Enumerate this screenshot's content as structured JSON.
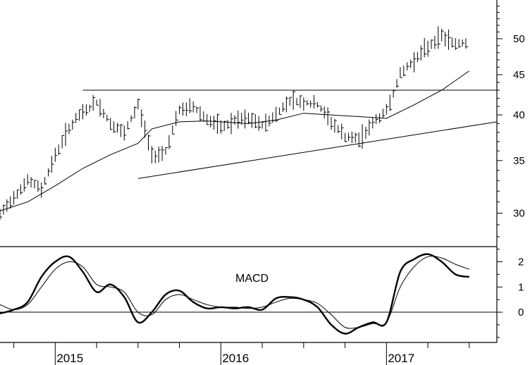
{
  "chart_data": [
    {
      "type": "bar",
      "subtype": "ohlc-weekly",
      "title": "",
      "yscale": "log",
      "ylim": [
        27.2,
        56
      ],
      "y_ticks": [
        30,
        35,
        40,
        45,
        50
      ],
      "x_labels": [
        "2015",
        "2016",
        "2017"
      ],
      "xlim": [
        "2014-09",
        "2017-09"
      ],
      "moving_average": {
        "x": [
          "2014-09",
          "2014-11",
          "2015-01",
          "2015-03",
          "2015-05",
          "2015-07",
          "2015-08",
          "2015-10",
          "2015-12",
          "2016-01",
          "2016-03",
          "2016-05",
          "2016-07",
          "2016-09",
          "2016-11",
          "2017-01",
          "2017-03",
          "2017-05",
          "2017-07"
        ],
        "y": [
          30.2,
          31.0,
          32.5,
          34.2,
          35.6,
          36.8,
          38.4,
          39.2,
          39.3,
          39.2,
          39.0,
          39.4,
          40.2,
          40.0,
          39.8,
          39.6,
          41.2,
          43.0,
          45.5
        ]
      },
      "price_weekly": {
        "x": [
          "2014-09",
          "2014-10",
          "2014-11",
          "2014-12",
          "2015-01",
          "2015-02",
          "2015-03",
          "2015-04",
          "2015-05",
          "2015-06",
          "2015-07",
          "2015-08",
          "2015-09",
          "2015-10",
          "2015-11",
          "2015-12",
          "2016-01",
          "2016-02",
          "2016-03",
          "2016-04",
          "2016-05",
          "2016-06",
          "2016-07",
          "2016-08",
          "2016-09",
          "2016-10",
          "2016-11",
          "2016-12",
          "2017-01",
          "2017-02",
          "2017-03",
          "2017-04",
          "2017-05",
          "2017-06",
          "2017-07"
        ],
        "y": [
          29.8,
          31.5,
          33.0,
          32.2,
          35.5,
          38.5,
          40.3,
          41.5,
          39.0,
          37.8,
          41.2,
          35.5,
          36.0,
          40.5,
          41.0,
          39.5,
          38.5,
          39.3,
          39.5,
          38.8,
          40.0,
          41.8,
          41.5,
          41.2,
          39.2,
          37.5,
          37.2,
          39.0,
          40.5,
          45.0,
          47.0,
          48.8,
          50.5,
          49.2,
          49.6
        ]
      },
      "trendlines": [
        {
          "from": [
            "2015-03",
            43.0
          ],
          "to": [
            "2017-09",
            43.0
          ]
        },
        {
          "from": [
            "2015-07",
            33.2
          ],
          "to": [
            "2017-09",
            39.2
          ]
        }
      ]
    },
    {
      "type": "line",
      "title": "",
      "annotation": "MACD",
      "ylim": [
        -1.2,
        2.6
      ],
      "y_ticks": [
        0,
        1,
        2
      ],
      "zero_line": true,
      "series": [
        {
          "x": [
            "2014-09",
            "2014-10",
            "2014-11",
            "2014-12",
            "2015-01",
            "2015-02",
            "2015-03",
            "2015-04",
            "2015-05",
            "2015-06",
            "2015-07",
            "2015-08",
            "2015-09",
            "2015-10",
            "2015-11",
            "2015-12",
            "2016-01",
            "2016-02",
            "2016-03",
            "2016-04",
            "2016-05",
            "2016-06",
            "2016-07",
            "2016-08",
            "2016-09",
            "2016-10",
            "2016-11",
            "2016-12",
            "2017-01",
            "2017-02",
            "2017-03",
            "2017-04",
            "2017-05",
            "2017-06",
            "2017-07"
          ],
          "y": [
            -0.05,
            0.1,
            0.4,
            1.4,
            2.0,
            2.2,
            1.6,
            0.8,
            1.1,
            0.6,
            -0.4,
            0.0,
            0.7,
            0.85,
            0.4,
            0.15,
            0.2,
            0.15,
            0.2,
            0.1,
            0.55,
            0.6,
            0.5,
            0.2,
            -0.5,
            -0.85,
            -0.6,
            -0.4,
            -0.4,
            1.6,
            2.1,
            2.3,
            2.0,
            1.5,
            1.4
          ]
        },
        {
          "x": [
            "2014-09",
            "2014-10",
            "2014-11",
            "2014-12",
            "2015-01",
            "2015-02",
            "2015-03",
            "2015-04",
            "2015-05",
            "2015-06",
            "2015-07",
            "2015-08",
            "2015-09",
            "2015-10",
            "2015-11",
            "2015-12",
            "2016-01",
            "2016-02",
            "2016-03",
            "2016-04",
            "2016-05",
            "2016-06",
            "2016-07",
            "2016-08",
            "2016-09",
            "2016-10",
            "2016-11",
            "2016-12",
            "2017-01",
            "2017-02",
            "2017-03",
            "2017-04",
            "2017-05",
            "2017-06",
            "2017-07"
          ],
          "y": [
            0.3,
            0.1,
            0.3,
            1.0,
            1.7,
            2.0,
            1.8,
            1.1,
            1.0,
            0.8,
            0.0,
            -0.1,
            0.5,
            0.7,
            0.5,
            0.3,
            0.2,
            0.2,
            0.15,
            0.2,
            0.4,
            0.55,
            0.5,
            0.35,
            -0.1,
            -0.6,
            -0.6,
            -0.45,
            -0.4,
            1.0,
            1.8,
            2.2,
            2.15,
            1.9,
            1.7
          ]
        }
      ]
    }
  ]
}
